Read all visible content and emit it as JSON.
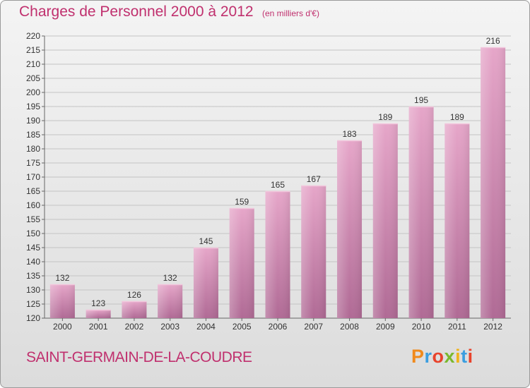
{
  "title": "Charges de Personnel 2000 à 2012",
  "unit_note": "(en milliers d'€)",
  "commune": "SAINT-GERMAIN-DE-LA-COUDRE",
  "logo": {
    "letters": [
      "P",
      "r",
      "o",
      "x",
      "i",
      "t",
      "i"
    ],
    "colors": [
      "#f08a1c",
      "#3b9ee0",
      "#e8432c",
      "#7ab82e",
      "#f0b31c",
      "#3b9ee0",
      "#e8432c"
    ]
  },
  "colors": {
    "bar": "#d98fb7",
    "title": "#c0306e"
  },
  "chart_data": {
    "type": "bar",
    "title": "Charges de Personnel 2000 à 2012",
    "categories": [
      "2000",
      "2001",
      "2002",
      "2003",
      "2004",
      "2005",
      "2006",
      "2007",
      "2008",
      "2009",
      "2010",
      "2011",
      "2012"
    ],
    "values": [
      132,
      123,
      126,
      132,
      145,
      159,
      165,
      167,
      183,
      189,
      195,
      189,
      216
    ],
    "ylim": [
      120,
      220
    ],
    "yticks": [
      120,
      125,
      130,
      135,
      140,
      145,
      150,
      155,
      160,
      165,
      170,
      175,
      180,
      185,
      190,
      195,
      200,
      205,
      210,
      215,
      220
    ],
    "grid": true
  }
}
